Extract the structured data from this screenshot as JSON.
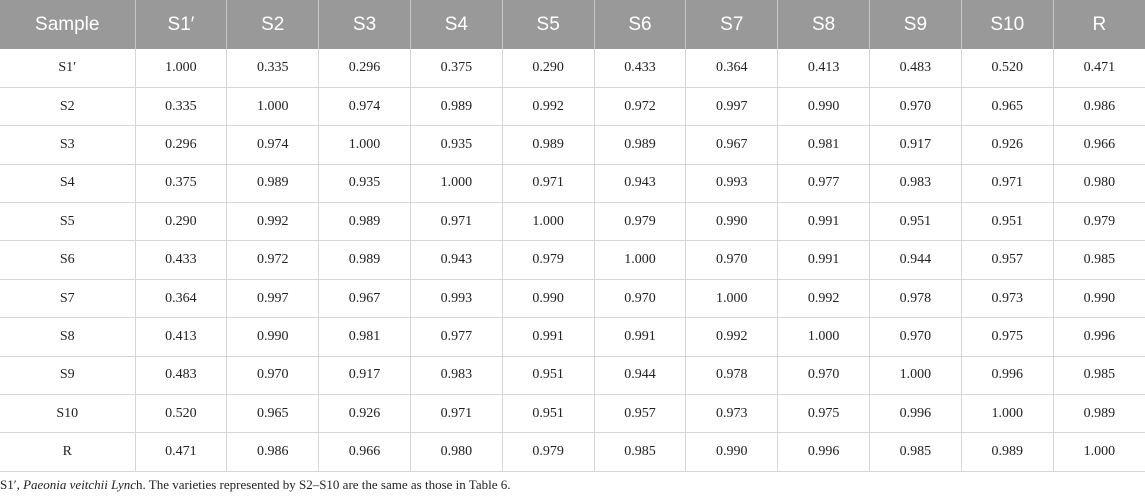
{
  "table": {
    "headers": [
      "Sample",
      "S1′",
      "S2",
      "S3",
      "S4",
      "S5",
      "S6",
      "S7",
      "S8",
      "S9",
      "S10",
      "R"
    ],
    "rows": [
      [
        "S1′",
        "1.000",
        "0.335",
        "0.296",
        "0.375",
        "0.290",
        "0.433",
        "0.364",
        "0.413",
        "0.483",
        "0.520",
        "0.471"
      ],
      [
        "S2",
        "0.335",
        "1.000",
        "0.974",
        "0.989",
        "0.992",
        "0.972",
        "0.997",
        "0.990",
        "0.970",
        "0.965",
        "0.986"
      ],
      [
        "S3",
        "0.296",
        "0.974",
        "1.000",
        "0.935",
        "0.989",
        "0.989",
        "0.967",
        "0.981",
        "0.917",
        "0.926",
        "0.966"
      ],
      [
        "S4",
        "0.375",
        "0.989",
        "0.935",
        "1.000",
        "0.971",
        "0.943",
        "0.993",
        "0.977",
        "0.983",
        "0.971",
        "0.980"
      ],
      [
        "S5",
        "0.290",
        "0.992",
        "0.989",
        "0.971",
        "1.000",
        "0.979",
        "0.990",
        "0.991",
        "0.951",
        "0.951",
        "0.979"
      ],
      [
        "S6",
        "0.433",
        "0.972",
        "0.989",
        "0.943",
        "0.979",
        "1.000",
        "0.970",
        "0.991",
        "0.944",
        "0.957",
        "0.985"
      ],
      [
        "S7",
        "0.364",
        "0.997",
        "0.967",
        "0.993",
        "0.990",
        "0.970",
        "1.000",
        "0.992",
        "0.978",
        "0.973",
        "0.990"
      ],
      [
        "S8",
        "0.413",
        "0.990",
        "0.981",
        "0.977",
        "0.991",
        "0.991",
        "0.992",
        "1.000",
        "0.970",
        "0.975",
        "0.996"
      ],
      [
        "S9",
        "0.483",
        "0.970",
        "0.917",
        "0.983",
        "0.951",
        "0.944",
        "0.978",
        "0.970",
        "1.000",
        "0.996",
        "0.985"
      ],
      [
        "S10",
        "0.520",
        "0.965",
        "0.926",
        "0.971",
        "0.951",
        "0.957",
        "0.973",
        "0.975",
        "0.996",
        "1.000",
        "0.989"
      ],
      [
        "R",
        "0.471",
        "0.986",
        "0.966",
        "0.980",
        "0.979",
        "0.985",
        "0.990",
        "0.996",
        "0.985",
        "0.989",
        "1.000"
      ]
    ]
  },
  "footnote": {
    "prefix": "S1′, ",
    "species": "Paeonia veitchii Lync",
    "species_tail": "h",
    "suffix": ". The varieties represented by S2–S10 are the same as those in Table 6."
  },
  "colors": {
    "header_bg": "#999999",
    "header_text": "#ffffff",
    "grid_line": "#d6d6d6"
  }
}
